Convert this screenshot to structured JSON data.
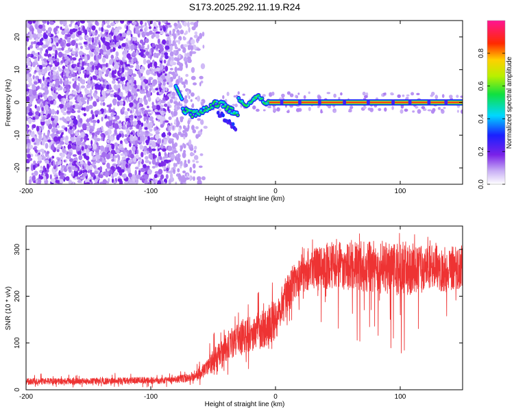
{
  "chart_data": [
    {
      "type": "heatmap",
      "title": "S173.2025.292.11.19.R24",
      "xlabel": "Height of straight line (km)",
      "ylabel": "Frequency (Hz)",
      "xlim": [
        -200,
        150
      ],
      "ylim": [
        -25,
        25
      ],
      "xticks": [
        "-200",
        "-100",
        "0",
        "100"
      ],
      "yticks": [
        "20",
        "10",
        "0",
        "-10",
        "-20"
      ],
      "colorbar": {
        "label": "Normalized spectral amplitude",
        "range": [
          0,
          1
        ],
        "ticks": [
          "0.0",
          "0.2",
          "0.4",
          "0.6",
          "0.8"
        ],
        "colormap": "rainbow (white-violet-blue-cyan-green-yellow-red-magenta)"
      },
      "features": {
        "noise_region_km": [
          -200,
          -60
        ],
        "signal_line_start_km": -80,
        "signal_frequency_hz": 0,
        "deviation_at_km": [
          -60,
          -25
        ],
        "deviation_min_hz": -8
      }
    },
    {
      "type": "line",
      "xlabel": "Height of straight line (km)",
      "ylabel": "SNR (10 * v/v)",
      "xlim": [
        -200,
        150
      ],
      "ylim": [
        0,
        350
      ],
      "xticks": [
        "-200",
        "-100",
        "0",
        "100"
      ],
      "yticks": [
        "0",
        "100",
        "200",
        "300"
      ],
      "color": "#ee3333",
      "envelope": {
        "x": [
          -200,
          -150,
          -100,
          -80,
          -70,
          -60,
          -50,
          -40,
          -30,
          -20,
          -10,
          0,
          10,
          20,
          30,
          40,
          60,
          80,
          100,
          120,
          150
        ],
        "mean": [
          18,
          18,
          20,
          22,
          25,
          35,
          60,
          90,
          110,
          120,
          130,
          150,
          210,
          250,
          260,
          265,
          265,
          262,
          260,
          258,
          262
        ],
        "max": [
          35,
          35,
          38,
          40,
          50,
          70,
          130,
          170,
          190,
          210,
          230,
          260,
          300,
          330,
          340,
          340,
          340,
          335,
          335,
          330,
          335
        ],
        "min": [
          5,
          5,
          5,
          6,
          8,
          10,
          20,
          30,
          40,
          40,
          50,
          60,
          100,
          140,
          150,
          120,
          110,
          90,
          70,
          110,
          120
        ]
      }
    }
  ]
}
